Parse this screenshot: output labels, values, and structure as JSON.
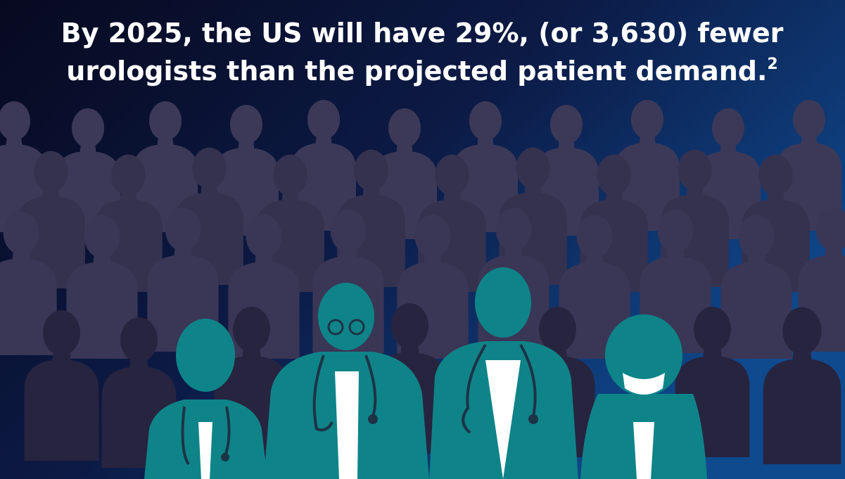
{
  "headline": {
    "lines": [
      "By 2025, the US will have 29%, (or 3,630) fewer",
      "urologists than the projected patient demand."
    ],
    "footnote": "2"
  }
}
